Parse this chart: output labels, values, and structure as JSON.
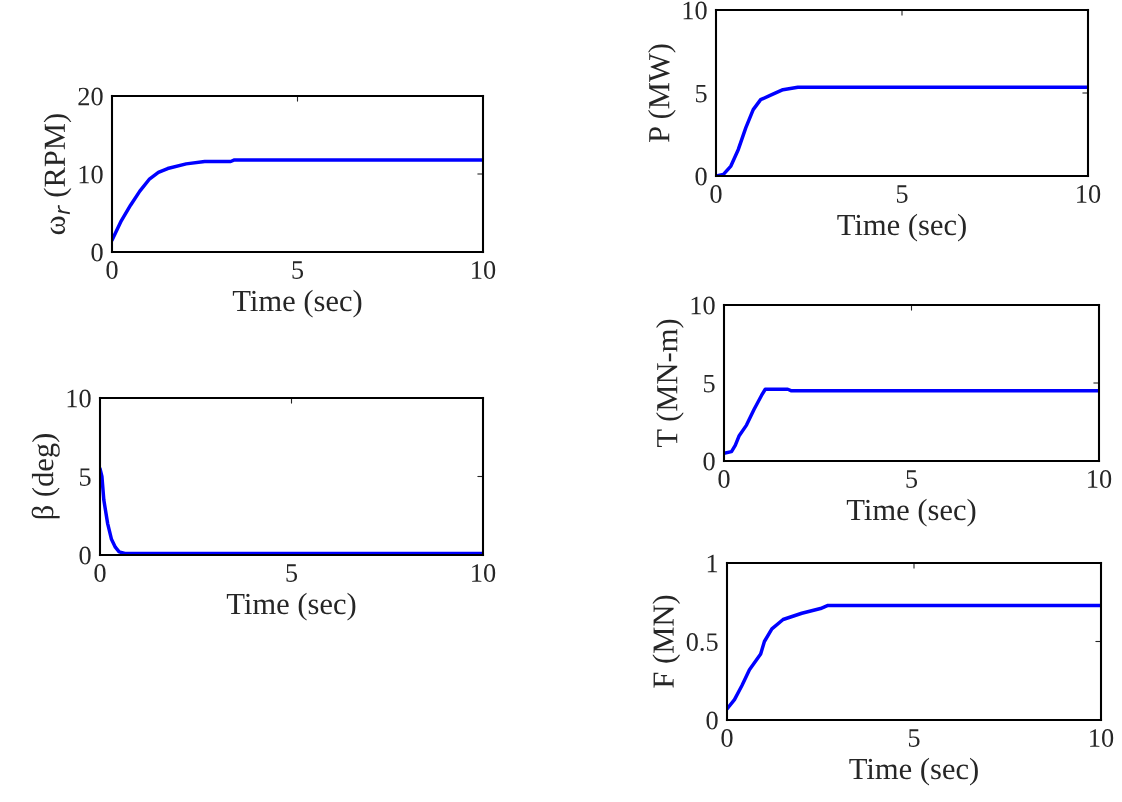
{
  "chart_data": [
    {
      "type": "line",
      "xlabel": "Time (sec)",
      "ylabel": "ω$_{r}$ (RPM)",
      "xlim": [
        0,
        10
      ],
      "xticks": [
        0,
        5,
        10
      ],
      "ylim": [
        0,
        20
      ],
      "yticks": [
        0,
        10,
        20
      ],
      "series": [
        {
          "color": "#0000ff",
          "x": [
            0,
            0.25,
            0.5,
            0.75,
            1,
            1.25,
            1.5,
            2,
            2.5,
            3.2,
            3.3,
            10
          ],
          "values": [
            1.5,
            4,
            6,
            7.8,
            9.3,
            10.2,
            10.7,
            11.3,
            11.6,
            11.6,
            11.8,
            11.8
          ]
        }
      ]
    },
    {
      "type": "line",
      "xlabel": "Time (sec)",
      "ylabel": "β (deg)",
      "xlim": [
        0,
        10
      ],
      "xticks": [
        0,
        5,
        10
      ],
      "ylim": [
        0,
        10
      ],
      "yticks": [
        0,
        5,
        10
      ],
      "series": [
        {
          "color": "#0000ff",
          "x": [
            0,
            0.05,
            0.1,
            0.2,
            0.3,
            0.4,
            0.5,
            0.65,
            10
          ],
          "values": [
            5.5,
            5,
            3.5,
            2,
            1,
            0.5,
            0.2,
            0.1,
            0.1
          ]
        }
      ]
    },
    {
      "type": "line",
      "xlabel": "Time (sec)",
      "ylabel": "P (MW)",
      "xlim": [
        0,
        10
      ],
      "xticks": [
        0,
        5,
        10
      ],
      "ylim": [
        0,
        10
      ],
      "yticks": [
        0,
        5,
        10
      ],
      "series": [
        {
          "color": "#0000ff",
          "x": [
            0,
            0.2,
            0.4,
            0.6,
            0.8,
            1,
            1.2,
            1.5,
            1.8,
            2.2,
            10
          ],
          "values": [
            0,
            0.1,
            0.6,
            1.6,
            2.9,
            4.0,
            4.6,
            4.9,
            5.2,
            5.35,
            5.35
          ]
        }
      ]
    },
    {
      "type": "line",
      "xlabel": "Time (sec)",
      "ylabel": "T (MN-m)",
      "xlim": [
        0,
        10
      ],
      "xticks": [
        0,
        5,
        10
      ],
      "ylim": [
        0,
        10
      ],
      "yticks": [
        0,
        5,
        10
      ],
      "series": [
        {
          "color": "#0000ff",
          "x": [
            0,
            0.2,
            0.3,
            0.4,
            0.6,
            0.8,
            1,
            1.1,
            1.7,
            1.8,
            10
          ],
          "values": [
            0.5,
            0.6,
            1.0,
            1.6,
            2.3,
            3.3,
            4.2,
            4.6,
            4.6,
            4.5,
            4.5
          ]
        }
      ]
    },
    {
      "type": "line",
      "xlabel": "Time (sec)",
      "ylabel": "F (MN)",
      "xlim": [
        0,
        10
      ],
      "xticks": [
        0,
        5,
        10
      ],
      "ylim": [
        0,
        1
      ],
      "yticks": [
        0,
        0.5,
        1
      ],
      "series": [
        {
          "color": "#0000ff",
          "x": [
            0,
            0.2,
            0.4,
            0.6,
            0.9,
            1,
            1.2,
            1.5,
            2,
            2.5,
            2.7,
            10
          ],
          "values": [
            0.07,
            0.13,
            0.22,
            0.32,
            0.42,
            0.5,
            0.58,
            0.64,
            0.68,
            0.71,
            0.73,
            0.73
          ]
        }
      ]
    }
  ]
}
